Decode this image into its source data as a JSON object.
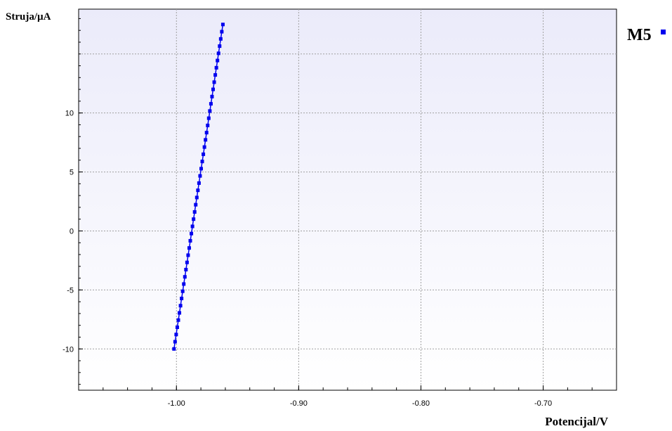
{
  "chart_data": {
    "type": "line",
    "ylabel": "Struja/µA",
    "xlabel": "Potencijal/V",
    "xlim": [
      -1.08,
      -0.64
    ],
    "ylim": [
      -13.5,
      18.8
    ],
    "xticks": [
      {
        "value": -1.0,
        "label": "-1.00"
      },
      {
        "value": -0.9,
        "label": "-0.90"
      },
      {
        "value": -0.8,
        "label": "-0.80"
      },
      {
        "value": -0.7,
        "label": "-0.70"
      }
    ],
    "yticks": [
      {
        "value": -10,
        "label": "-10"
      },
      {
        "value": -5,
        "label": "-5"
      },
      {
        "value": 0,
        "label": "0"
      },
      {
        "value": 5,
        "label": "5"
      },
      {
        "value": 10,
        "label": "10"
      }
    ],
    "xgrid": [
      -1.0,
      -0.9,
      -0.8,
      -0.7
    ],
    "ygrid": [
      -10,
      -5,
      0,
      5,
      10,
      15
    ],
    "grid": true,
    "legend_position": "top-right",
    "series": [
      {
        "name": "M5",
        "color": "#0000ee",
        "marker": "square",
        "x_start": -1.002,
        "x_end": -0.962,
        "y_start": -10.0,
        "y_end": 17.5,
        "num_points": 46
      }
    ]
  }
}
